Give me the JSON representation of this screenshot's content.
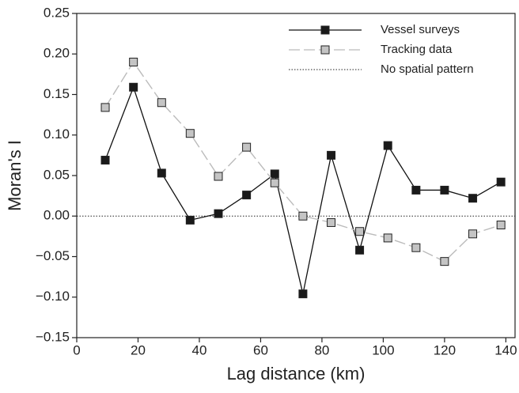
{
  "chart_data": {
    "type": "line",
    "xlabel": "Lag distance (km)",
    "ylabel": "Moran's I",
    "xlim": [
      0,
      143
    ],
    "xticks": [
      0,
      20,
      40,
      60,
      80,
      100,
      120,
      140
    ],
    "ylim": [
      -0.15,
      0.25
    ],
    "yticks": [
      {
        "value": -0.15,
        "label": "−0.15"
      },
      {
        "value": -0.1,
        "label": "−0.10"
      },
      {
        "value": -0.05,
        "label": "−0.05"
      },
      {
        "value": 0,
        "label": "0.00"
      },
      0.05,
      {
        "value": 0.1,
        "label": "0.10"
      },
      0.15,
      {
        "value": 0.2,
        "label": "0.20"
      },
      0.25
    ],
    "x": [
      9.3,
      18.5,
      27.7,
      37,
      46.2,
      55.4,
      64.6,
      73.8,
      83,
      92.3,
      101.5,
      110.7,
      120,
      129.2,
      138.4
    ],
    "series": [
      {
        "name": "Vessel surveys",
        "color": "#111111",
        "marker_color": "#1a1a1a",
        "dashed": false,
        "values": [
          0.069,
          0.159,
          0.053,
          -0.005,
          0.003,
          0.026,
          0.052,
          -0.096,
          0.075,
          -0.042,
          0.087,
          0.032,
          0.032,
          0.022,
          0.042
        ]
      },
      {
        "name": "Tracking data",
        "color": "#bbbbbb",
        "marker_color": "#c4c4c4",
        "dashed": true,
        "values": [
          0.134,
          0.19,
          0.14,
          0.102,
          0.049,
          0.085,
          0.041,
          0.0,
          -0.008,
          -0.019,
          -0.027,
          -0.039,
          -0.056,
          -0.022,
          -0.011
        ]
      }
    ],
    "reference_line": {
      "name": "No spatial pattern",
      "value": 0
    },
    "legend": "upper right"
  }
}
